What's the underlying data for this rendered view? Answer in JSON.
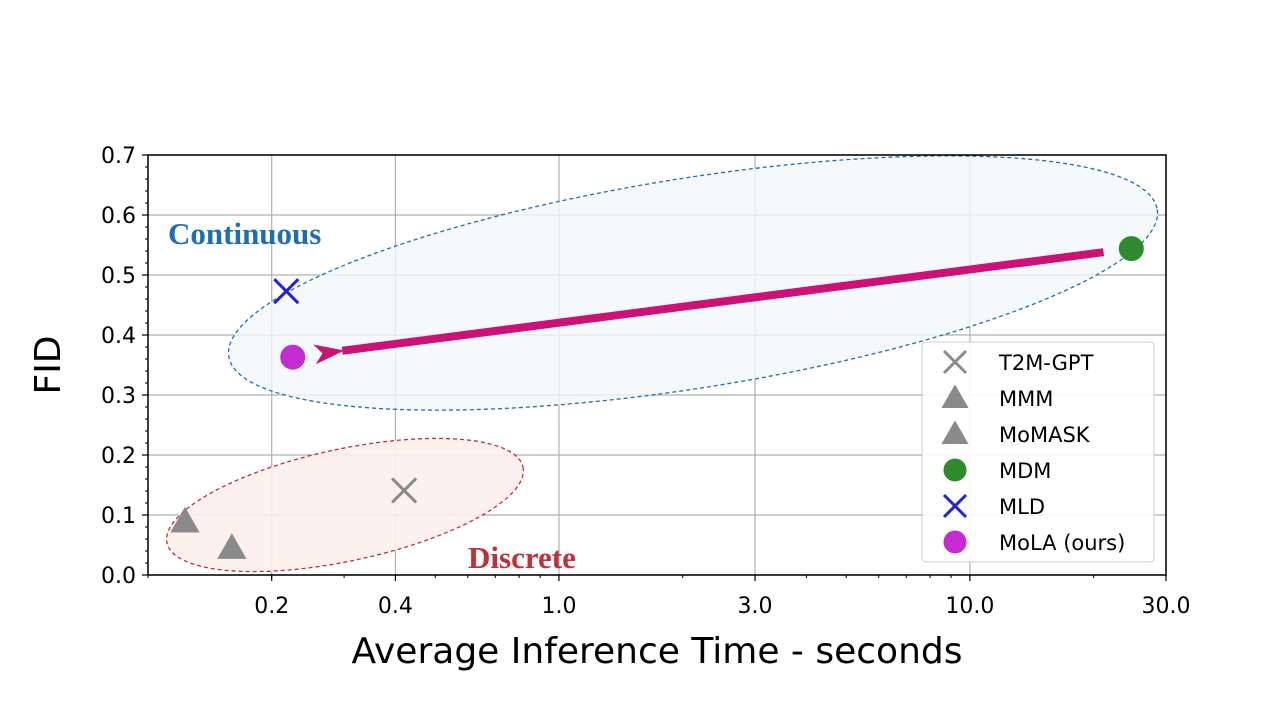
{
  "chart_data": {
    "type": "scatter",
    "title": "",
    "xlabel": "Average Inference Time - seconds",
    "ylabel": "FID",
    "xscale": "log",
    "xlim": [
      0.1,
      30.0
    ],
    "ylim": [
      0.0,
      0.7
    ],
    "xtick_labels": [
      "0.2",
      "0.4",
      "1.0",
      "3.0",
      "10.0",
      "30.0"
    ],
    "xtick_values": [
      0.2,
      0.4,
      1.0,
      3.0,
      10.0,
      30.0
    ],
    "ytick_labels": [
      "0.0",
      "0.1",
      "0.2",
      "0.3",
      "0.4",
      "0.5",
      "0.6",
      "0.7"
    ],
    "ytick_values": [
      0.0,
      0.1,
      0.2,
      0.3,
      0.4,
      0.5,
      0.6,
      0.7
    ],
    "grid": true,
    "legend_position": "lower-right",
    "series": [
      {
        "name": "T2M-GPT",
        "marker": "x",
        "color": "#8a8a8a",
        "points": [
          {
            "x": 0.42,
            "y": 0.141
          }
        ]
      },
      {
        "name": "MMM",
        "marker": "triangle",
        "color": "#8a8a8a",
        "points": [
          {
            "x": 0.123,
            "y": 0.089
          }
        ]
      },
      {
        "name": "MoMASK",
        "marker": "triangle",
        "color": "#8a8a8a",
        "points": [
          {
            "x": 0.16,
            "y": 0.045
          }
        ]
      },
      {
        "name": "MDM",
        "marker": "circle",
        "color": "#2e8b2e",
        "points": [
          {
            "x": 24.7,
            "y": 0.544
          }
        ]
      },
      {
        "name": "MLD",
        "marker": "x",
        "color": "#2222dd",
        "points": [
          {
            "x": 0.217,
            "y": 0.473
          }
        ]
      },
      {
        "name": "MoLA (ours)",
        "marker": "circle",
        "color": "#c42bd0",
        "points": [
          {
            "x": 0.225,
            "y": 0.363
          }
        ]
      }
    ],
    "annotations": [
      {
        "text": "Continuous",
        "color": "#1f6eb5"
      },
      {
        "text": "Discrete",
        "color": "#c0303a"
      }
    ],
    "arrow": {
      "from": "MDM",
      "to": "MoLA (ours)",
      "color": "#cc1177"
    }
  }
}
